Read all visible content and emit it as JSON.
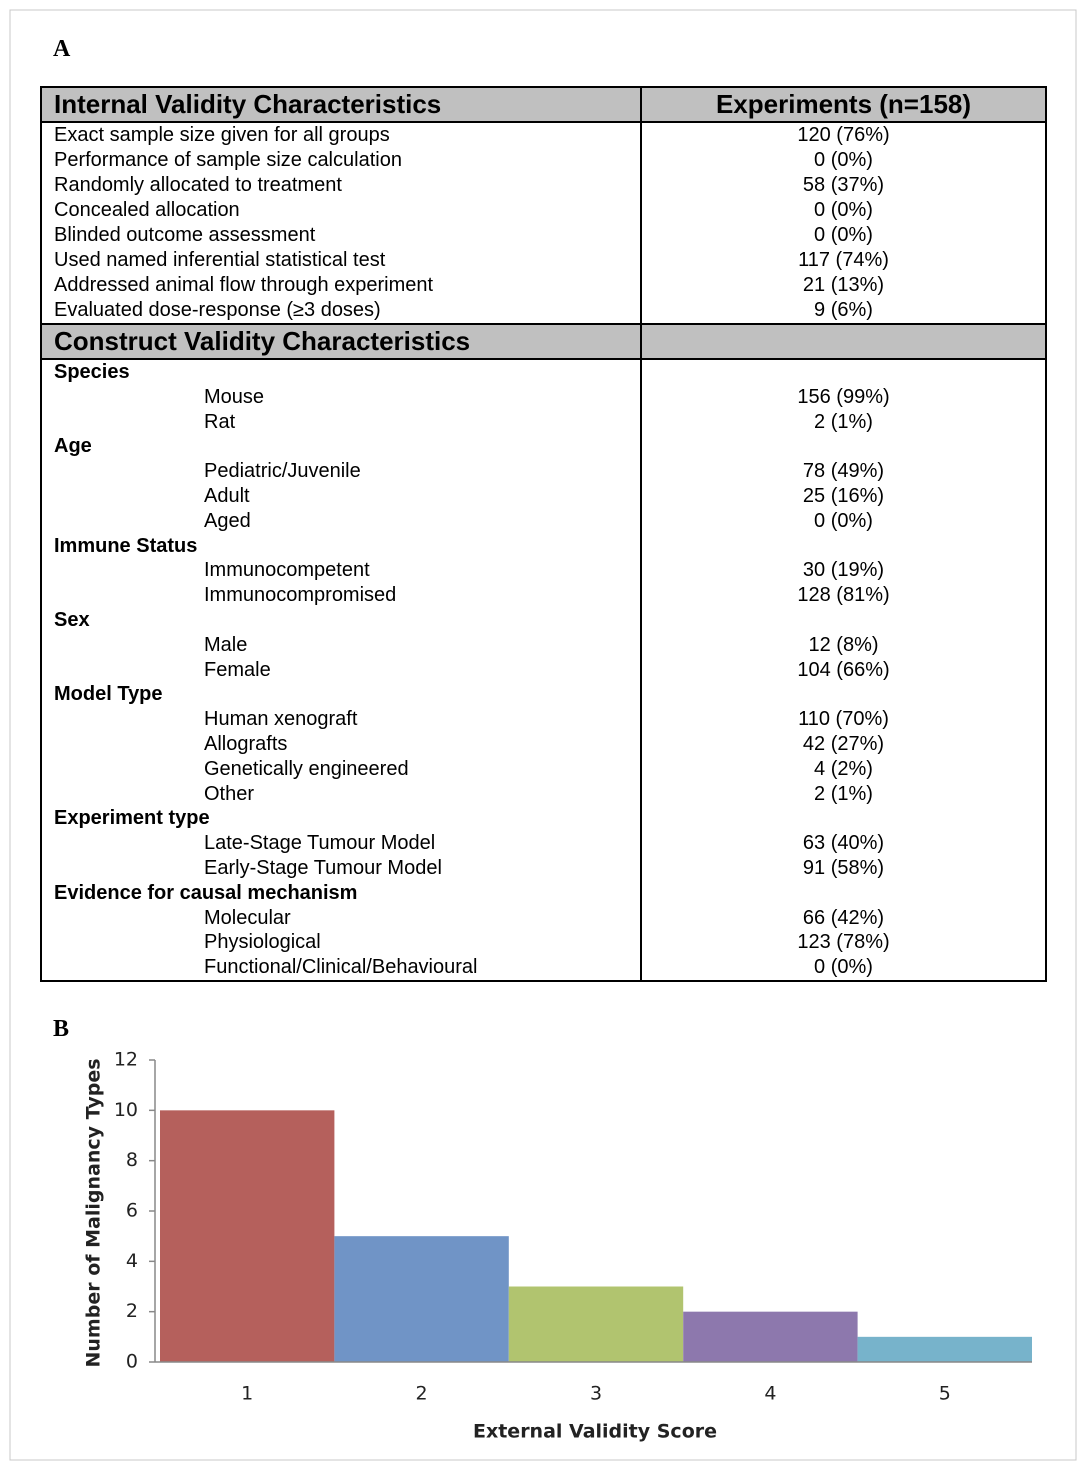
{
  "panel_a": {
    "label": "A",
    "table": {
      "header": [
        "Internal Validity Characteristics",
        "Experiments (n=158)"
      ],
      "rows": [
        [
          "Exact sample size given for all groups",
          "120 (76%)"
        ],
        [
          "Performance of sample size calculation",
          "0 (0%)"
        ],
        [
          "Randomly allocated to treatment",
          "58 (37%)"
        ],
        [
          "Concealed allocation",
          "0 (0%)"
        ],
        [
          "Blinded outcome assessment",
          "0 (0%)"
        ],
        [
          "Used named inferential statistical test",
          "117 (74%)"
        ],
        [
          "Addressed animal flow through experiment",
          "21 (13%)"
        ],
        [
          "Evaluated dose-response (≥3 doses)",
          "9 (6%)"
        ]
      ],
      "construct_header": "Construct Validity Characteristics",
      "groups": [
        {
          "name": "Species",
          "rows": [
            [
              "Mouse",
              "156 (99%)"
            ],
            [
              "Rat",
              "2 (1%)"
            ]
          ]
        },
        {
          "name": "Age",
          "rows": [
            [
              "Pediatric/Juvenile",
              "78 (49%)"
            ],
            [
              "Adult",
              "25 (16%)"
            ],
            [
              "Aged",
              "0 (0%)"
            ]
          ]
        },
        {
          "name": "Immune Status",
          "rows": [
            [
              "Immunocompetent",
              "30 (19%)"
            ],
            [
              "Immunocompromised",
              "128 (81%)"
            ]
          ]
        },
        {
          "name": "Sex",
          "rows": [
            [
              "Male",
              "12 (8%)"
            ],
            [
              "Female",
              "104 (66%)"
            ]
          ]
        },
        {
          "name": "Model Type",
          "rows": [
            [
              "Human xenograft",
              "110 (70%)"
            ],
            [
              "Allografts",
              "42 (27%)"
            ],
            [
              "Genetically engineered",
              "4 (2%)"
            ],
            [
              "Other",
              "2 (1%)"
            ]
          ]
        },
        {
          "name": "Experiment type",
          "rows": [
            [
              "Late-Stage Tumour Model",
              "63 (40%)"
            ],
            [
              "Early-Stage Tumour Model",
              "91 (58%)"
            ]
          ]
        },
        {
          "name": "Evidence for causal mechanism",
          "rows": [
            [
              "Molecular",
              "66 (42%)"
            ],
            [
              "Physiological",
              "123 (78%)"
            ],
            [
              "Functional/Clinical/Behavioural",
              "0 (0%)"
            ]
          ]
        }
      ]
    }
  },
  "panel_b": {
    "label": "B"
  },
  "chart_data": {
    "type": "bar",
    "categories": [
      "1",
      "2",
      "3",
      "4",
      "5"
    ],
    "values": [
      10,
      5,
      3,
      2,
      1
    ],
    "colors": [
      "#b5605c",
      "#7094c6",
      "#b1c46f",
      "#8d78ad",
      "#77b3cb"
    ],
    "ylim": [
      0,
      12
    ],
    "yticks": [
      0,
      2,
      4,
      6,
      8,
      10,
      12
    ],
    "x_label": "External Validity Score",
    "y_label": "Number of Malignancy Types"
  }
}
